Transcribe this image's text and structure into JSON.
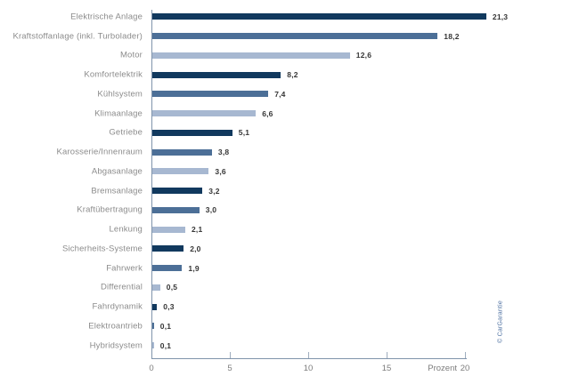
{
  "chart_data": {
    "type": "bar",
    "orientation": "horizontal",
    "title": "",
    "xlabel": "Prozent",
    "xlim": [
      0,
      20
    ],
    "grid": false,
    "x_ticks": [
      0,
      5,
      10,
      15,
      20
    ],
    "x_tick_labels": [
      "0",
      "5",
      "10",
      "15",
      "20"
    ],
    "axis_unit_label": "Prozent",
    "copyright": "© CarGarantie",
    "colors": {
      "dark": "#11395e",
      "medium": "#4c6f97",
      "light": "#a7b8d1"
    },
    "rows": [
      {
        "label": "Elektrische Anlage",
        "value": 21.3,
        "value_label": "21,3",
        "tone": "dark"
      },
      {
        "label": "Kraftstoffanlage (inkl. Turbolader)",
        "value": 18.2,
        "value_label": "18,2",
        "tone": "medium"
      },
      {
        "label": "Motor",
        "value": 12.6,
        "value_label": "12,6",
        "tone": "light"
      },
      {
        "label": "Komfortelektrik",
        "value": 8.2,
        "value_label": "8,2",
        "tone": "dark"
      },
      {
        "label": "Kühlsystem",
        "value": 7.4,
        "value_label": "7,4",
        "tone": "medium"
      },
      {
        "label": "Klimaanlage",
        "value": 6.6,
        "value_label": "6,6",
        "tone": "light"
      },
      {
        "label": "Getriebe",
        "value": 5.1,
        "value_label": "5,1",
        "tone": "dark"
      },
      {
        "label": "Karosserie/Innenraum",
        "value": 3.8,
        "value_label": "3,8",
        "tone": "medium"
      },
      {
        "label": "Abgasanlage",
        "value": 3.6,
        "value_label": "3,6",
        "tone": "light"
      },
      {
        "label": "Bremsanlage",
        "value": 3.2,
        "value_label": "3,2",
        "tone": "dark"
      },
      {
        "label": "Kraftübertragung",
        "value": 3.0,
        "value_label": "3,0",
        "tone": "medium"
      },
      {
        "label": "Lenkung",
        "value": 2.1,
        "value_label": "2,1",
        "tone": "light"
      },
      {
        "label": "Sicherheits-Systeme",
        "value": 2.0,
        "value_label": "2,0",
        "tone": "dark"
      },
      {
        "label": "Fahrwerk",
        "value": 1.9,
        "value_label": "1,9",
        "tone": "medium"
      },
      {
        "label": "Differential",
        "value": 0.5,
        "value_label": "0,5",
        "tone": "light"
      },
      {
        "label": "Fahrdynamik",
        "value": 0.3,
        "value_label": "0,3",
        "tone": "dark"
      },
      {
        "label": "Elektroantrieb",
        "value": 0.1,
        "value_label": "0,1",
        "tone": "medium"
      },
      {
        "label": "Hybridsystem",
        "value": 0.1,
        "value_label": "0,1",
        "tone": "light"
      }
    ]
  }
}
